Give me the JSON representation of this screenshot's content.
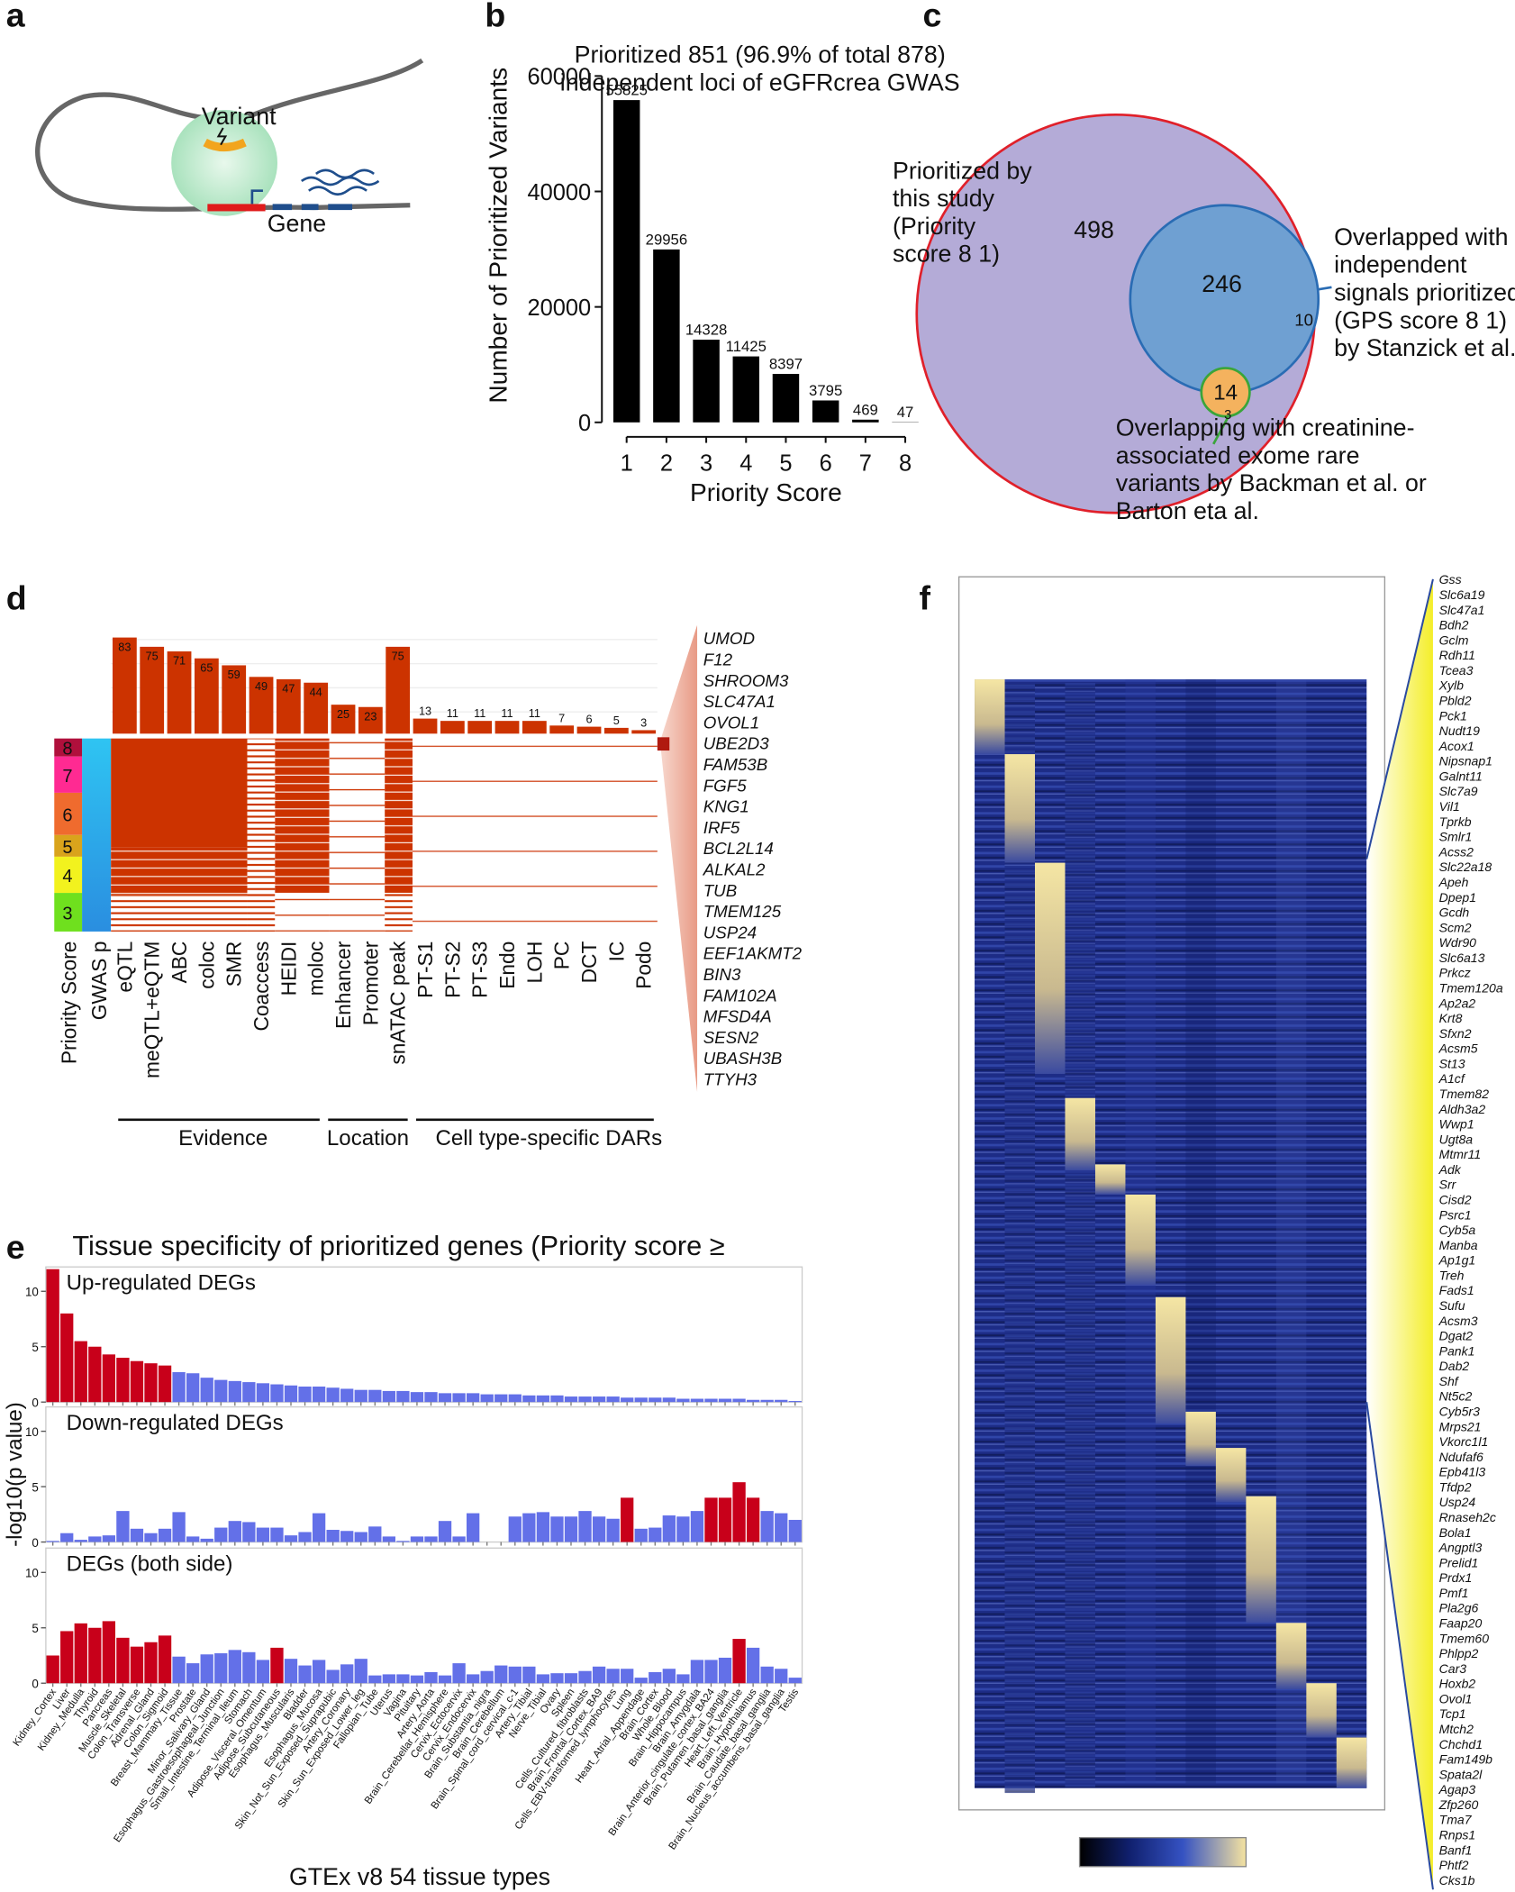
{
  "panel_labels": [
    "a",
    "b",
    "c",
    "d",
    "e",
    "f"
  ],
  "panel_a": {
    "variant_label": "Variant",
    "gene_label": "Gene"
  },
  "chart_data": [
    {
      "type": "bar",
      "y_label": "Number of Prioritized Variants",
      "x_label": "Priority Score",
      "categories": [
        "1",
        "2",
        "3",
        "4",
        "5",
        "6",
        "7",
        "8"
      ],
      "values": [
        55825,
        29956,
        14328,
        11425,
        8397,
        3795,
        469,
        47
      ],
      "color": "#000000",
      "ylim": [
        0,
        65000
      ],
      "yticks": [
        0,
        20000,
        40000,
        60000
      ]
    },
    {
      "type": "bar",
      "categories": [
        "eQTL",
        "meQTL+eQTM",
        "ABC",
        "coloc",
        "SMR",
        "Coaccess",
        "HEIDI",
        "moloc",
        "Enhancer",
        "Promoter",
        "snATAC peak",
        "PT-S1",
        "PT-S2",
        "PT-S3",
        "Endo",
        "LOH",
        "PC",
        "DCT",
        "IC",
        "Podo"
      ],
      "values": [
        83,
        75,
        71,
        65,
        59,
        49,
        47,
        44,
        25,
        23,
        75,
        13,
        11,
        11,
        11,
        11,
        7,
        6,
        5,
        3
      ],
      "color": "#cc3300",
      "ylim": [
        0,
        100
      ]
    },
    {
      "type": "bar",
      "title": "Tissue specificity of prioritized genes (Priority score ≥",
      "y_label": "-log10(p value)",
      "x_label": "GTEx v8 54 tissue types",
      "categories": [
        "Kidney_Cortex",
        "Liver",
        "Kidney_Medulla",
        "Thyroid",
        "Pancreas",
        "Muscle_Skeletal",
        "Colon_Transverse",
        "Adrenal_Gland",
        "Colon_Sigmoid",
        "Breast_Mammary_Tissue",
        "Prostate",
        "Minor_Salivary_Gland",
        "Esophagus_Gastroesophageal_Junction",
        "Small_Intestine_Terminal_Ileum",
        "Stomach",
        "Adipose_Visceral_Omentum",
        "Adipose_Subcutaneous",
        "Esophagus_Muscularis",
        "Bladder",
        "Esophagus_Mucosa",
        "Skin_Not_Sun_Exposed_Suprapubic",
        "Artery_Coronary",
        "Skin_Sun_Exposed_Lower_leg",
        "Fallopian_Tube",
        "Uterus",
        "Vagina",
        "Pituitary",
        "Artery_Aorta",
        "Brain_Cerebellar_Hemisphere",
        "Cervix_Ectocervix",
        "Cervix_Endocervix",
        "Brain_Substantia_nigra",
        "Brain_Cerebellum",
        "Brain_Spinal_cord_cervical_c-1",
        "Artery_Tibial",
        "Nerve_Tibial",
        "Ovary",
        "Spleen",
        "Cells_Cultured_fibroblasts",
        "Brain_Frontal_Cortex_BA9",
        "Cells_EBV-transformed_lymphocytes",
        "Lung",
        "Heart_Atrial_Appendage",
        "Brain_Cortex",
        "Whole_Blood",
        "Brain_Hippocampus",
        "Brain_Amygdala",
        "Brain_Anterior_cingulate_cortex_BA24",
        "Brain_Putamen_basal_ganglia",
        "Heart_Left_Ventricle",
        "Brain_Hypothalamus",
        "Brain_Caudate_basal_ganglia",
        "Brain_Nucleus_accumbens_basal_ganglia",
        "Testis"
      ],
      "ylim": [
        0,
        12.2
      ],
      "yticks": [
        0,
        5,
        10
      ],
      "series": [
        {
          "name": "Up-regulated DEGs",
          "values": [
            12,
            8,
            5.5,
            5,
            4.3,
            4,
            3.7,
            3.5,
            3.3,
            2.7,
            2.6,
            2.2,
            2,
            1.9,
            1.8,
            1.7,
            1.6,
            1.5,
            1.4,
            1.4,
            1.3,
            1.2,
            1.1,
            1.1,
            1,
            1,
            0.9,
            0.9,
            0.8,
            0.8,
            0.8,
            0.7,
            0.7,
            0.7,
            0.6,
            0.6,
            0.6,
            0.5,
            0.5,
            0.5,
            0.5,
            0.4,
            0.4,
            0.4,
            0.4,
            0.3,
            0.3,
            0.3,
            0.3,
            0.3,
            0.2,
            0.2,
            0.2,
            0.1
          ],
          "colors": [
            "#c8001a",
            "#c8001a",
            "#c8001a",
            "#c8001a",
            "#c8001a",
            "#c8001a",
            "#c8001a",
            "#c8001a",
            "#c8001a",
            "#6370e8",
            "#6370e8",
            "#6370e8",
            "#6370e8",
            "#6370e8",
            "#6370e8",
            "#6370e8",
            "#6370e8",
            "#6370e8",
            "#6370e8",
            "#6370e8",
            "#6370e8",
            "#6370e8",
            "#6370e8",
            "#6370e8",
            "#6370e8",
            "#6370e8",
            "#6370e8",
            "#6370e8",
            "#6370e8",
            "#6370e8",
            "#6370e8",
            "#6370e8",
            "#6370e8",
            "#6370e8",
            "#6370e8",
            "#6370e8",
            "#6370e8",
            "#6370e8",
            "#6370e8",
            "#6370e8",
            "#6370e8",
            "#6370e8",
            "#6370e8",
            "#6370e8",
            "#6370e8",
            "#6370e8",
            "#6370e8",
            "#6370e8",
            "#6370e8",
            "#6370e8",
            "#6370e8",
            "#6370e8",
            "#6370e8",
            "#6370e8"
          ]
        },
        {
          "name": "Down-regulated DEGs",
          "values": [
            0.1,
            0.8,
            0.2,
            0.5,
            0.6,
            2.8,
            1.2,
            0.8,
            1.2,
            2.7,
            0.5,
            0.3,
            1.3,
            1.9,
            1.8,
            1.3,
            1.3,
            0.6,
            0.9,
            2.6,
            1.1,
            1,
            0.9,
            1.4,
            0.5,
            0.1,
            0.5,
            0.5,
            1.9,
            0.5,
            2.6,
            0,
            0,
            2.3,
            2.6,
            2.7,
            2.3,
            2.3,
            2.8,
            2.3,
            2.1,
            4,
            1.2,
            1.3,
            2.4,
            2.3,
            2.8,
            4,
            4,
            5.4,
            4,
            2.8,
            2.6,
            2
          ],
          "colors": [
            "#6370e8",
            "#6370e8",
            "#6370e8",
            "#6370e8",
            "#6370e8",
            "#6370e8",
            "#6370e8",
            "#6370e8",
            "#6370e8",
            "#6370e8",
            "#6370e8",
            "#6370e8",
            "#6370e8",
            "#6370e8",
            "#6370e8",
            "#6370e8",
            "#6370e8",
            "#6370e8",
            "#6370e8",
            "#6370e8",
            "#6370e8",
            "#6370e8",
            "#6370e8",
            "#6370e8",
            "#6370e8",
            "#6370e8",
            "#6370e8",
            "#6370e8",
            "#6370e8",
            "#6370e8",
            "#6370e8",
            "#6370e8",
            "#6370e8",
            "#6370e8",
            "#6370e8",
            "#6370e8",
            "#6370e8",
            "#6370e8",
            "#6370e8",
            "#6370e8",
            "#6370e8",
            "#c8001a",
            "#6370e8",
            "#6370e8",
            "#6370e8",
            "#6370e8",
            "#6370e8",
            "#c8001a",
            "#c8001a",
            "#c8001a",
            "#c8001a",
            "#6370e8",
            "#6370e8",
            "#6370e8"
          ]
        },
        {
          "name": "DEGs (both side)",
          "values": [
            2.5,
            4.7,
            5.4,
            5,
            5.6,
            4.1,
            3.3,
            3.7,
            4.3,
            2.4,
            1.8,
            2.6,
            2.7,
            3,
            2.8,
            2.1,
            3.2,
            2.2,
            1.6,
            2.1,
            1.2,
            1.7,
            2.2,
            0.7,
            0.8,
            0.8,
            0.7,
            1,
            0.7,
            1.8,
            0.8,
            1.1,
            1.6,
            1.5,
            1.5,
            0.8,
            0.9,
            0.9,
            1.1,
            1.5,
            1.3,
            1.3,
            0.5,
            1,
            1.3,
            0.8,
            2.1,
            2.1,
            2.3,
            4,
            3.2,
            1.5,
            1.3,
            0.5
          ],
          "colors": [
            "#c8001a",
            "#c8001a",
            "#c8001a",
            "#c8001a",
            "#c8001a",
            "#c8001a",
            "#c8001a",
            "#c8001a",
            "#c8001a",
            "#6370e8",
            "#6370e8",
            "#6370e8",
            "#6370e8",
            "#6370e8",
            "#6370e8",
            "#6370e8",
            "#c8001a",
            "#6370e8",
            "#6370e8",
            "#6370e8",
            "#6370e8",
            "#6370e8",
            "#6370e8",
            "#6370e8",
            "#6370e8",
            "#6370e8",
            "#6370e8",
            "#6370e8",
            "#6370e8",
            "#6370e8",
            "#6370e8",
            "#6370e8",
            "#6370e8",
            "#6370e8",
            "#6370e8",
            "#6370e8",
            "#6370e8",
            "#6370e8",
            "#6370e8",
            "#6370e8",
            "#6370e8",
            "#6370e8",
            "#6370e8",
            "#6370e8",
            "#6370e8",
            "#6370e8",
            "#6370e8",
            "#6370e8",
            "#6370e8",
            "#c8001a",
            "#6370e8",
            "#6370e8",
            "#6370e8",
            "#6370e8"
          ]
        }
      ]
    }
  ],
  "panel_c": {
    "title_lines": [
      "Prioritized 851 (96.9% of total 878)",
      "independent loci of eGFRcrea GWAS"
    ],
    "left_label_lines": [
      "Prioritized by",
      "this study",
      "(Priority",
      "score 8 1)"
    ],
    "right_label_lines": [
      "Overlapped with",
      "independent",
      "signals prioritized",
      "(GPS score 8 1)",
      "by Stanzick et al."
    ],
    "bottom_label_lines": [
      "Overlapping with creatinine-",
      "associated exome rare",
      "variants by Backman et al. or",
      "Barton eta al."
    ],
    "counts": [
      "498",
      "246",
      "10",
      "14",
      "3"
    ]
  },
  "panel_d": {
    "strip_labels": [
      "Priority Score",
      "GWAS p"
    ],
    "priority_levels": [
      8,
      7,
      6,
      5,
      4,
      3
    ],
    "priority_colors": [
      "#b0103c",
      "#ff2a92",
      "#ef6b2e",
      "#d9a41c",
      "#f2f21e",
      "#6fe01e"
    ],
    "groups": [
      "Evidence",
      "Location",
      "Cell type-specific DARs"
    ],
    "genes": [
      "UMOD",
      "F12",
      "SHROOM3",
      "SLC47A1",
      "OVOL1",
      "UBE2D3",
      "FAM53B",
      "FGF5",
      "KNG1",
      "IRF5",
      "BCL2L14",
      "ALKAL2",
      "TUB",
      "TMEM125",
      "USP24",
      "EEF1AKMT2",
      "BIN3",
      "FAM102A",
      "MFSD4A",
      "SESN2",
      "UBASH3B",
      "TTYH3"
    ]
  },
  "panel_f": {
    "genes": [
      "Gss",
      "Slc6a19",
      "Slc47a1",
      "Bdh2",
      "Gclm",
      "Rdh11",
      "Tcea3",
      "Xylb",
      "Pbld2",
      "Pck1",
      "Nudt19",
      "Acox1",
      "Nipsnap1",
      "Galnt11",
      "Slc7a9",
      "Vil1",
      "Tprkb",
      "Smlr1",
      "Acss2",
      "Slc22a18",
      "Apeh",
      "Dpep1",
      "Gcdh",
      "Scm2",
      "Wdr90",
      "Slc6a13",
      "Prkcz",
      "Tmem120a",
      "Ap2a2",
      "Krt8",
      "Sfxn2",
      "Acsm5",
      "St13",
      "A1cf",
      "Tmem82",
      "Aldh3a2",
      "Wwp1",
      "Ugt8a",
      "Mtmr11",
      "Adk",
      "Srr",
      "Cisd2",
      "Psrc1",
      "Cyb5a",
      "Manba",
      "Ap1g1",
      "Treh",
      "Fads1",
      "Sufu",
      "Acsm3",
      "Dgat2",
      "Pank1",
      "Dab2",
      "Shf",
      "Nt5c2",
      "Cyb5r3",
      "Mrps21",
      "Vkorc1l1",
      "Ndufaf6",
      "Epb41l3",
      "Tfdp2",
      "Usp24",
      "Rnaseh2c",
      "Bola1",
      "Angptl3",
      "Prelid1",
      "Prdx1",
      "Pmf1",
      "Pla2g6",
      "Faap20",
      "Tmem60",
      "Phlpp2",
      "Car3",
      "Hoxb2",
      "Ovol1",
      "Tcp1",
      "Mtch2",
      "Chchd1",
      "Fam149b",
      "Spata2l",
      "Agap3",
      "Zfp260",
      "Tma7",
      "Rnps1",
      "Banf1",
      "Phtf2",
      "Cks1b"
    ]
  }
}
